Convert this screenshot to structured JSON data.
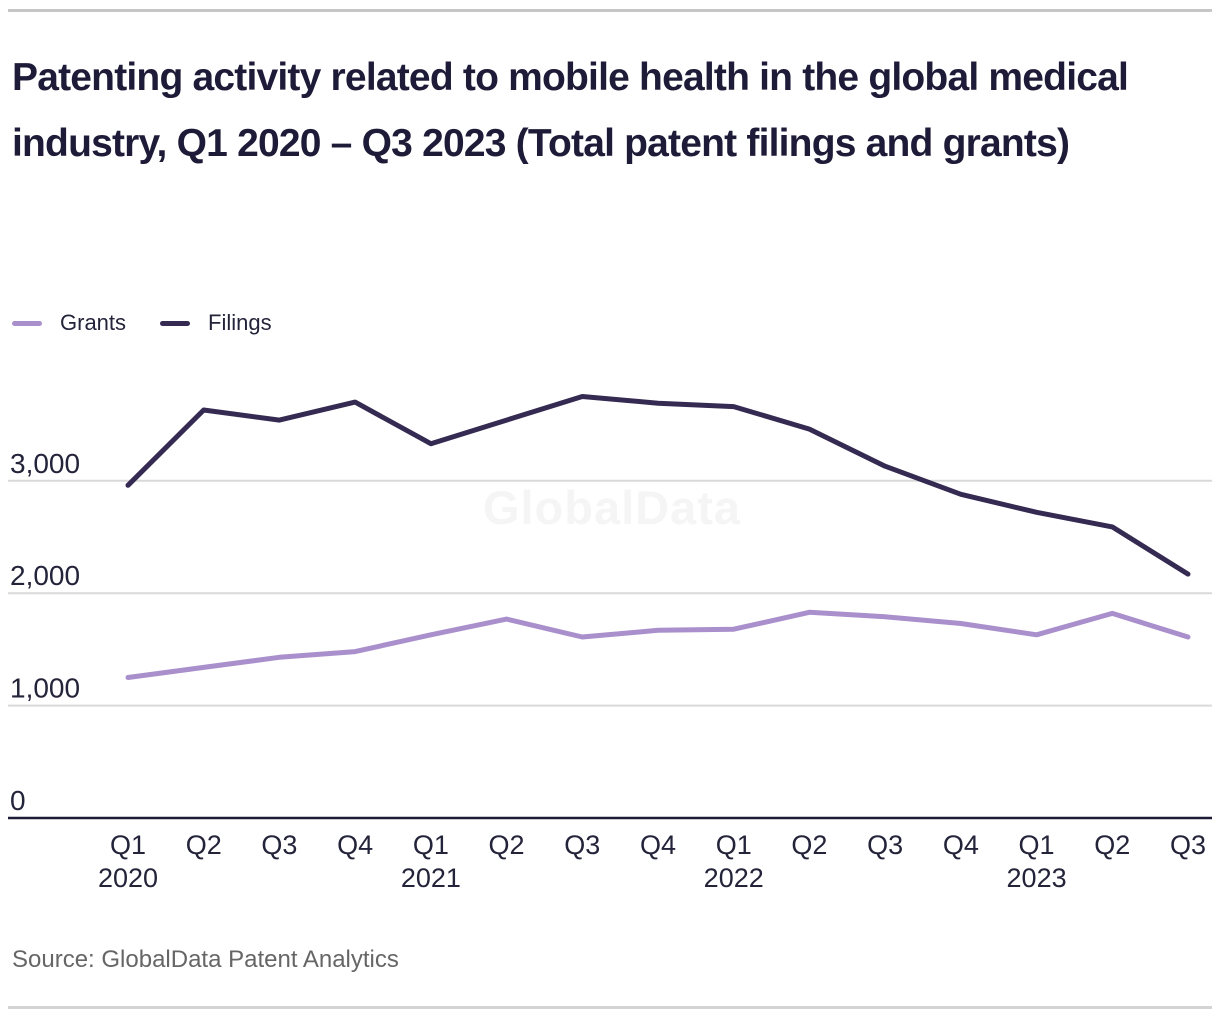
{
  "colors": {
    "title": "#1e1b38",
    "grants_line": "#a98fcb",
    "filings_line": "#352a52",
    "grid": "#d9d9d9",
    "axis": "#1e1b38",
    "tick_text": "#23233a",
    "source_text": "#666666",
    "watermark": "#f5f5f5",
    "rule_top": "#c6c6c6",
    "rule_bottom": "#d4d4d4"
  },
  "chart_data": {
    "type": "line",
    "title": "Patenting activity related to mobile health in the global medical industry, Q1 2020 – Q3 2023 (Total patent filings and grants)",
    "categories": [
      "Q1 2020",
      "Q2 2020",
      "Q3 2020",
      "Q4 2020",
      "Q1 2021",
      "Q2 2021",
      "Q3 2021",
      "Q4 2021",
      "Q1 2022",
      "Q2 2022",
      "Q3 2022",
      "Q4 2022",
      "Q1 2023",
      "Q2 2023",
      "Q3 2023"
    ],
    "series": [
      {
        "name": "Grants",
        "color": "#a98fcb",
        "values": [
          1250,
          1340,
          1430,
          1480,
          1630,
          1770,
          1610,
          1670,
          1680,
          1830,
          1790,
          1730,
          1630,
          1820,
          1610
        ]
      },
      {
        "name": "Filings",
        "color": "#352a52",
        "values": [
          2960,
          3630,
          3540,
          3700,
          3330,
          3540,
          3750,
          3690,
          3660,
          3460,
          3130,
          2880,
          2720,
          2590,
          2170
        ]
      }
    ],
    "xlabel": "",
    "ylabel": "",
    "ylim": [
      0,
      4000
    ],
    "yticks": [
      0,
      1000,
      2000,
      3000
    ],
    "grid": "horizontal",
    "legend_position": "top-left",
    "watermark": "GlobalData",
    "source": "Source: GlobalData Patent Analytics"
  }
}
